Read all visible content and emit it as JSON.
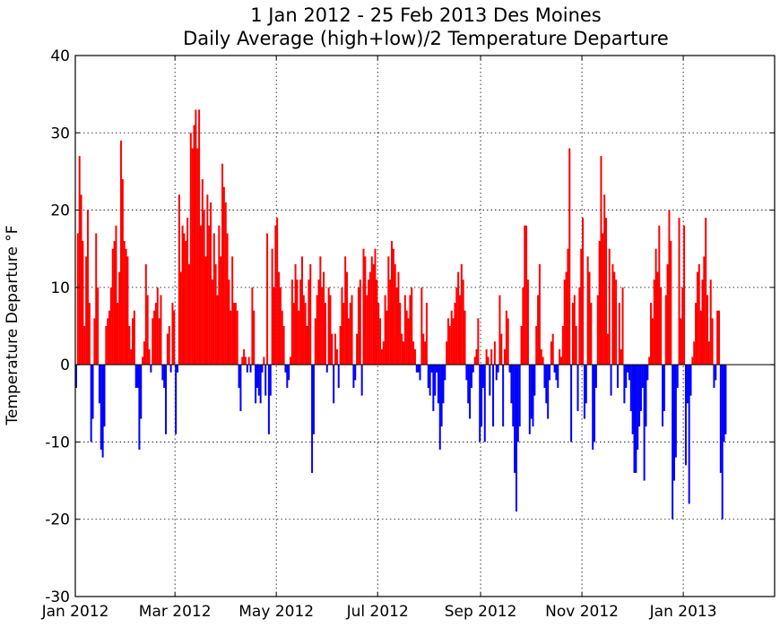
{
  "chart_data": {
    "type": "bar",
    "title": "1 Jan 2012 - 25 Feb 2013 Des Moines",
    "subtitle": "Daily Average (high+low)/2 Temperature Departure",
    "ylabel": "Temperature Departure °F",
    "xlabel": "",
    "ylim": [
      -30,
      40
    ],
    "yticks": [
      -30,
      -20,
      -10,
      0,
      10,
      20,
      30,
      40
    ],
    "xlim": [
      "2012-01-01",
      "2013-02-25"
    ],
    "xticks": [
      {
        "date": "2012-01-01",
        "label": "Jan 2012"
      },
      {
        "date": "2012-03-01",
        "label": "Mar 2012"
      },
      {
        "date": "2012-05-01",
        "label": "May 2012"
      },
      {
        "date": "2012-07-01",
        "label": "Jul 2012"
      },
      {
        "date": "2012-09-01",
        "label": "Sep 2012"
      },
      {
        "date": "2012-11-01",
        "label": "Nov 2012"
      },
      {
        "date": "2013-01-01",
        "label": "Jan 2013"
      }
    ],
    "grid": true,
    "colors": {
      "positive": "#ff0000",
      "negative": "#0000ff"
    },
    "start_date": "2012-01-01",
    "values": [
      -3,
      17,
      27,
      22,
      16,
      5,
      14,
      20,
      8,
      -10,
      -7,
      6,
      17,
      10,
      -5,
      -11,
      -12,
      -8,
      5,
      6,
      7,
      10,
      15,
      16,
      18,
      8,
      12,
      29,
      24,
      16,
      15,
      14,
      5,
      2,
      6,
      7,
      -3,
      -3,
      -11,
      -7,
      1,
      3,
      13,
      9,
      2,
      -1,
      6,
      7,
      8,
      10,
      6,
      9,
      -2,
      -3,
      -9,
      4,
      5,
      -1,
      8,
      7,
      -9,
      -1,
      22,
      12,
      18,
      17,
      16,
      19,
      13,
      30,
      28,
      31,
      33,
      28,
      33,
      18,
      24,
      20,
      14,
      22,
      18,
      21,
      11,
      17,
      13,
      9,
      18,
      14,
      26,
      23,
      21,
      17,
      11,
      7,
      14,
      8,
      8,
      7,
      -3,
      -6,
      1,
      2,
      1,
      -1,
      1,
      -1,
      10,
      7,
      -5,
      -3,
      -4,
      -5,
      -1,
      1,
      -4,
      17,
      -9,
      -4,
      15,
      10,
      18,
      19,
      12,
      10,
      7,
      5,
      -1,
      -3,
      -2,
      1,
      11,
      8,
      13,
      11,
      7,
      11,
      14,
      9,
      8,
      5,
      11,
      13,
      -14,
      -9,
      6,
      9,
      11,
      14,
      10,
      12,
      8,
      -1,
      10,
      9,
      4,
      -5,
      4,
      2,
      -3,
      5,
      10,
      8,
      14,
      12,
      6,
      8,
      9,
      -3,
      -2,
      4,
      10,
      11,
      -4,
      15,
      14,
      9,
      11,
      12,
      14,
      13,
      15,
      11,
      8,
      6,
      2,
      3,
      9,
      7,
      14,
      11,
      16,
      15,
      13,
      10,
      12,
      8,
      4,
      3,
      9,
      7,
      6,
      9,
      10,
      3,
      2,
      -1,
      -1,
      -2,
      10,
      4,
      3,
      8,
      -3,
      -4,
      -1,
      -6,
      -4,
      -1,
      -5,
      -11,
      -8,
      -5,
      -2,
      3,
      6,
      5,
      7,
      6,
      8,
      10,
      12,
      9,
      13,
      11,
      7,
      -2,
      -5,
      -7,
      -3,
      -1,
      1,
      2,
      6,
      -10,
      -8,
      -3,
      -10,
      2,
      1,
      -4,
      2,
      -8,
      3,
      -2,
      -1,
      9,
      4,
      -8,
      2,
      7,
      6,
      -1,
      -5,
      -8,
      -14,
      -19,
      -10,
      -8,
      5,
      10,
      18,
      18,
      11,
      -9,
      -7,
      -8,
      -4,
      5,
      9,
      13,
      2,
      1,
      -3,
      -5,
      -7,
      -2,
      3,
      4,
      -1,
      -2,
      -3,
      2,
      1,
      5,
      11,
      12,
      15,
      28,
      -10,
      8,
      9,
      5,
      -6,
      10,
      15,
      19,
      -7,
      -5,
      14,
      12,
      8,
      -11,
      -10,
      -3,
      9,
      16,
      27,
      17,
      22,
      19,
      4,
      15,
      -4,
      13,
      12,
      11,
      -3,
      8,
      2,
      10,
      -5,
      -3,
      -1,
      -2,
      -6,
      -9,
      -14,
      -14,
      -11,
      -8,
      -6,
      -3,
      -15,
      -8,
      -2,
      1,
      8,
      6,
      11,
      15,
      12,
      18,
      10,
      -8,
      -6,
      9,
      13,
      20,
      16,
      -20,
      -15,
      -12,
      -3,
      19,
      6,
      10,
      18,
      -13,
      -5,
      -18,
      -4,
      1,
      3,
      8,
      12,
      13,
      7,
      11,
      14,
      19,
      9,
      3,
      11,
      6,
      -3,
      -2,
      7,
      7,
      -14,
      -20,
      -10,
      -9
    ]
  }
}
